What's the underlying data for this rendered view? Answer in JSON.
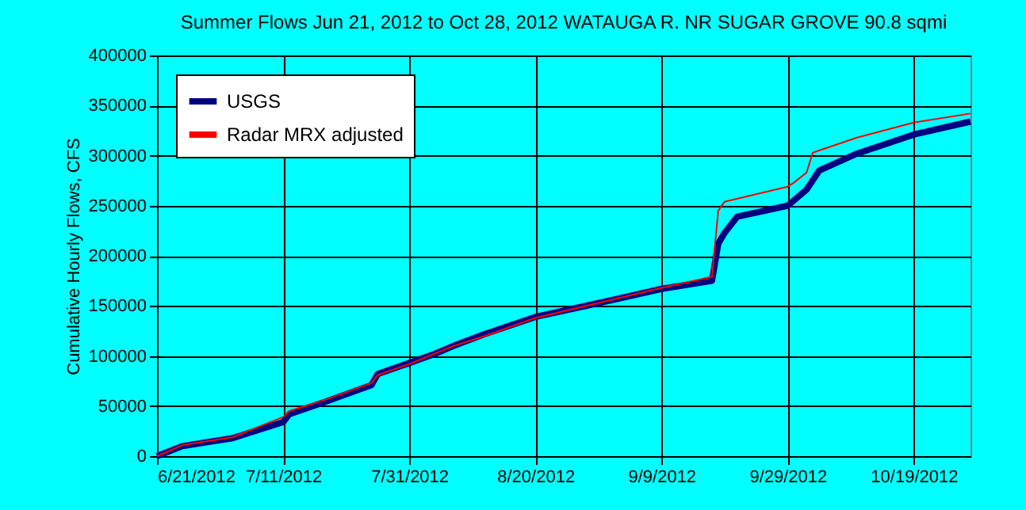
{
  "chart_data": {
    "type": "line",
    "title": "Summer Flows Jun 21, 2012 to Oct 28, 2012 WATAUGA R. NR SUGAR GROVE 90.8 sqmi",
    "ylabel": "Cumulative Hourly Flows, CFS",
    "xlim": [
      "2012-06-21",
      "2012-10-28"
    ],
    "xticks": [
      {
        "value": "2012-06-21",
        "label": "6/21/2012"
      },
      {
        "value": "2012-07-11",
        "label": "7/11/2012"
      },
      {
        "value": "2012-07-31",
        "label": "7/31/2012"
      },
      {
        "value": "2012-08-20",
        "label": "8/20/2012"
      },
      {
        "value": "2012-09-09",
        "label": "9/9/2012"
      },
      {
        "value": "2012-09-29",
        "label": "9/29/2012"
      },
      {
        "value": "2012-10-19",
        "label": "10/19/2012"
      }
    ],
    "ylim": [
      0,
      400000
    ],
    "yticks": [
      0,
      50000,
      100000,
      150000,
      200000,
      250000,
      300000,
      350000,
      400000
    ],
    "grid": true,
    "legend": "top left",
    "marker": "none",
    "line_style": "solid",
    "series": [
      {
        "name": "USGS",
        "color": "#000080",
        "x": [
          "2012-06-21",
          "2012-06-25",
          "2012-07-03",
          "2012-07-11",
          "2012-07-12",
          "2012-07-18",
          "2012-07-25",
          "2012-07-26",
          "2012-07-31",
          "2012-08-04",
          "2012-08-07",
          "2012-08-12",
          "2012-08-20",
          "2012-08-28",
          "2012-09-09",
          "2012-09-17",
          "2012-09-18",
          "2012-09-19",
          "2012-09-21",
          "2012-09-29",
          "2012-10-02",
          "2012-10-04",
          "2012-10-10",
          "2012-10-19",
          "2012-10-28"
        ],
        "values": [
          0,
          10000,
          18000,
          34000,
          42000,
          55000,
          71000,
          82000,
          93000,
          102000,
          110000,
          122000,
          139000,
          150000,
          167000,
          175000,
          212000,
          223000,
          239000,
          250000,
          266000,
          285000,
          302000,
          321000,
          334000
        ]
      },
      {
        "name": "Radar MRX adjusted",
        "color": "#ff0000",
        "x": [
          "2012-06-21",
          "2012-06-25",
          "2012-07-03",
          "2012-07-11",
          "2012-07-12",
          "2012-07-18",
          "2012-07-25",
          "2012-07-26",
          "2012-07-31",
          "2012-08-07",
          "2012-08-12",
          "2012-08-20",
          "2012-08-28",
          "2012-09-09",
          "2012-09-17",
          "2012-09-18",
          "2012-09-19",
          "2012-09-29",
          "2012-09-30",
          "2012-10-02",
          "2012-10-03",
          "2012-10-10",
          "2012-10-19",
          "2012-10-28"
        ],
        "values": [
          0,
          11000,
          19000,
          39000,
          45000,
          57000,
          73000,
          81000,
          92000,
          110000,
          120000,
          138000,
          150000,
          168000,
          179000,
          245000,
          254000,
          269000,
          273000,
          283000,
          303000,
          318000,
          333000,
          342000
        ]
      }
    ]
  }
}
